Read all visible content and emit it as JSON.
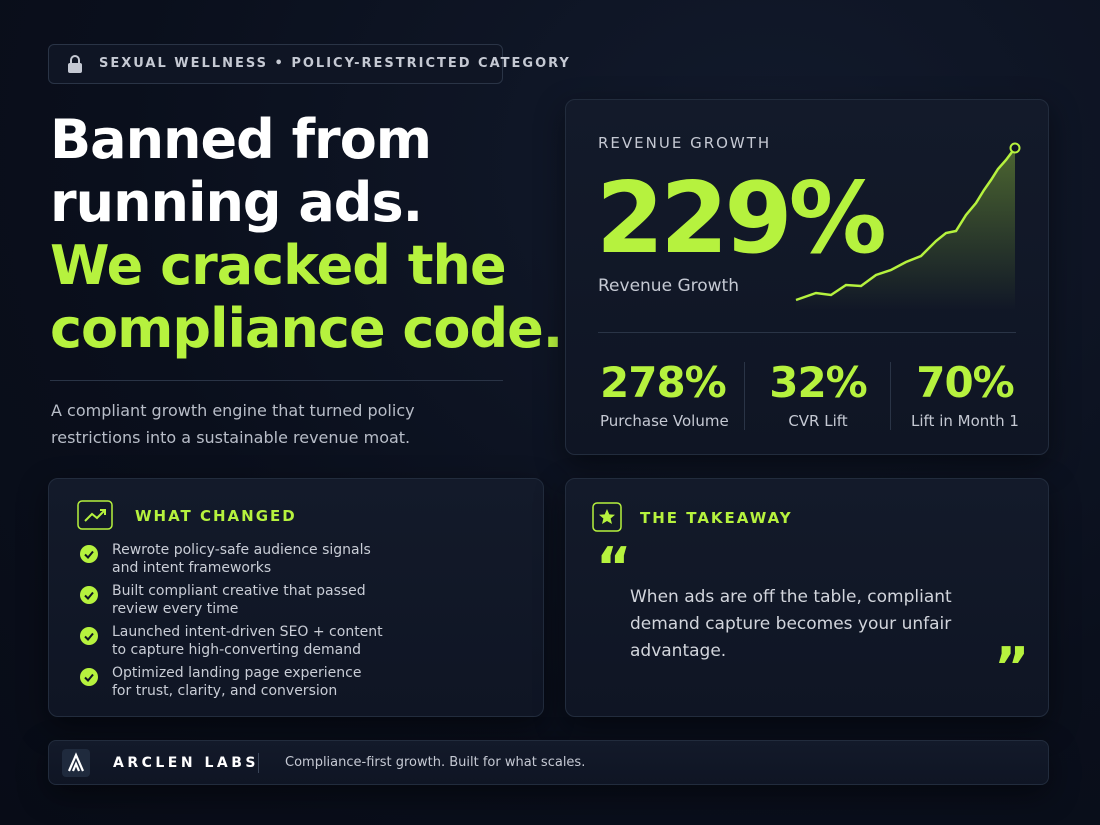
{
  "badge": {
    "text": "SEXUAL WELLNESS • POLICY-RESTRICTED CATEGORY"
  },
  "headline": {
    "lines": [
      "Banned from",
      "running ads."
    ],
    "highlight_lines": [
      "We cracked the",
      "compliance code."
    ]
  },
  "subtitle": {
    "lines": [
      "A compliant growth engine that turned policy",
      "restrictions into a sustainable revenue moat."
    ]
  },
  "revenue_card": {
    "heading": "REVENUE GROWTH",
    "main_value": "229%",
    "main_label": "Revenue Growth",
    "stats": [
      {
        "value": "278%",
        "label": "Purchase Volume"
      },
      {
        "value": "32%",
        "label": "CVR Lift"
      },
      {
        "value": "70%",
        "label": "Lift in Month 1"
      }
    ]
  },
  "what_changed": {
    "title": "WHAT CHANGED",
    "items": [
      [
        "Rewrote policy-safe audience signals",
        "and intent frameworks"
      ],
      [
        "Built compliant creative that passed",
        "review every time"
      ],
      [
        "Launched intent-driven SEO + content",
        "to capture high-converting demand"
      ],
      [
        "Optimized landing page experience",
        "for trust, clarity, and conversion"
      ]
    ]
  },
  "takeaway": {
    "title": "THE TAKEAWAY",
    "quote_open": "“",
    "quote_close": "”",
    "quote_lines": [
      "When ads are off the table, compliant",
      "demand capture becomes your unfair",
      "advantage."
    ]
  },
  "footer": {
    "brand": "ARCLEN LABS",
    "tagline": "Compliance-first growth. Built for what scales."
  }
}
